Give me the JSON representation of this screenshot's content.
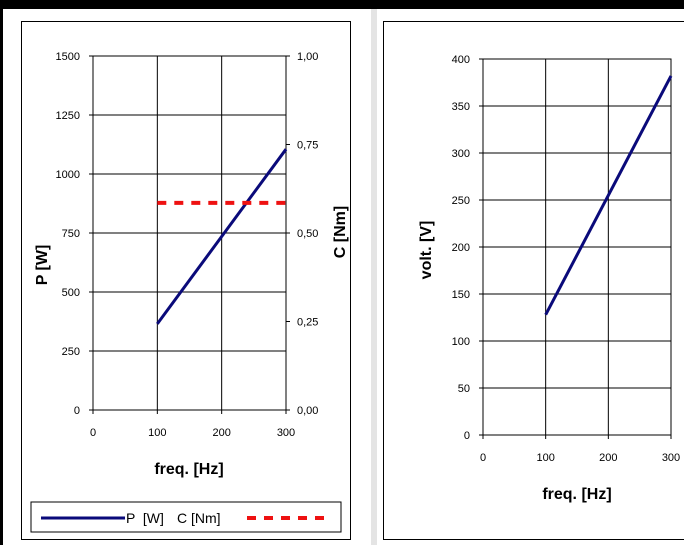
{
  "chart_data": [
    {
      "type": "line",
      "x": [
        100,
        300
      ],
      "xlabel": "freq. [Hz]",
      "xlim": [
        0,
        300
      ],
      "xticks": [
        "0",
        "100",
        "200",
        "300"
      ],
      "ylabel": "P  [W]",
      "ylim": [
        0,
        1500
      ],
      "yticks": [
        "0",
        "250",
        "500",
        "750",
        "1000",
        "1250",
        "1500"
      ],
      "y2label": "C  [Nm]",
      "y2lim": [
        0,
        1.0
      ],
      "y2ticks": [
        "0,00",
        "0,25",
        "0,50",
        "0,75",
        "1,00"
      ],
      "grid": true,
      "legend_position": "bottom",
      "series": [
        {
          "name": "P  [W]",
          "axis": "left",
          "style": "solid",
          "color": "#0a0a7a",
          "values": [
            365,
            1105
          ]
        },
        {
          "name": "C [Nm]",
          "axis": "right",
          "style": "dashed",
          "color": "#ee1111",
          "values": [
            0.585,
            0.585
          ]
        }
      ]
    },
    {
      "type": "line",
      "x": [
        100,
        300
      ],
      "xlabel": "freq. [Hz]",
      "xlim": [
        0,
        300
      ],
      "xticks": [
        "0",
        "100",
        "200",
        "300"
      ],
      "ylabel": "volt. [V]",
      "ylim": [
        0,
        400
      ],
      "yticks": [
        "0",
        "50",
        "100",
        "150",
        "200",
        "250",
        "300",
        "350",
        "400"
      ],
      "grid": true,
      "series": [
        {
          "color": "#0a0a7a",
          "style": "solid",
          "values": [
            128,
            382
          ]
        }
      ]
    }
  ]
}
